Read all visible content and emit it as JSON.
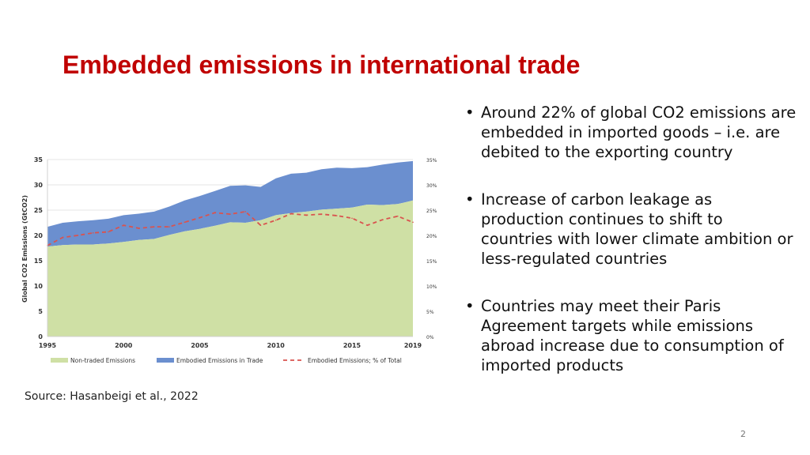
{
  "slide": {
    "title": "Embedded emissions in international trade",
    "bullets": [
      "Around 22% of global CO2 emissions are embedded in imported goods – i.e. are debited to the exporting country",
      "Increase of  carbon leakage as production continues to shift to countries with lower climate ambition or less-regulated countries",
      "Countries may meet their Paris Agreement targets while emissions abroad increase due to consumption of imported products"
    ],
    "bullet_symbol": "•",
    "source": "Source: Hasanbeigi et al., 2022",
    "page_number": "2"
  },
  "chart_data": {
    "type": "area",
    "ylabel": "Global CO2 Emissions (GtCO2)",
    "x": [
      1995,
      1996,
      1997,
      1998,
      1999,
      2000,
      2001,
      2002,
      2003,
      2004,
      2005,
      2006,
      2007,
      2008,
      2009,
      2010,
      2011,
      2012,
      2013,
      2014,
      2015,
      2016,
      2017,
      2018,
      2019
    ],
    "series": [
      {
        "name": "Non-traded Emissions",
        "kind": "stacked-area",
        "axis": "left",
        "color": "#cfe0a5",
        "values": [
          17.8,
          18.1,
          18.2,
          18.2,
          18.4,
          18.7,
          19.1,
          19.3,
          20.1,
          20.8,
          21.3,
          21.9,
          22.6,
          22.5,
          23.0,
          24.0,
          24.4,
          24.7,
          25.1,
          25.3,
          25.5,
          26.1,
          26.0,
          26.2,
          26.9
        ]
      },
      {
        "name": "Embodied Emissions in Trade",
        "kind": "stacked-area",
        "axis": "left",
        "color": "#6b8fcf",
        "values": [
          3.9,
          4.4,
          4.6,
          4.8,
          4.9,
          5.3,
          5.2,
          5.4,
          5.6,
          6.1,
          6.5,
          6.9,
          7.2,
          7.4,
          6.6,
          7.3,
          7.8,
          7.7,
          8.0,
          8.1,
          7.8,
          7.4,
          8.0,
          8.2,
          7.8
        ]
      },
      {
        "name": "Embodied Emissions; % of Total",
        "kind": "dashed-line",
        "axis": "right",
        "color": "#d9534f",
        "values": [
          18.0,
          19.6,
          20.0,
          20.5,
          20.7,
          22.0,
          21.4,
          21.7,
          21.7,
          22.6,
          23.5,
          24.5,
          24.2,
          24.7,
          22.0,
          23.0,
          24.3,
          24.0,
          24.2,
          23.9,
          23.4,
          22.0,
          23.1,
          23.8,
          22.6
        ]
      }
    ],
    "left_axis": {
      "ylim": [
        0,
        35
      ],
      "ticks": [
        "0",
        "5",
        "10",
        "15",
        "20",
        "25",
        "30",
        "35"
      ]
    },
    "right_axis": {
      "ylim": [
        0,
        35
      ],
      "ticks": [
        "0%",
        "5%",
        "10%",
        "15%",
        "20%",
        "25%",
        "30%",
        "35%"
      ]
    },
    "x_ticks": [
      "1995",
      "2000",
      "2005",
      "2010",
      "2015",
      "2019"
    ],
    "grid": true,
    "legend": "bottom"
  }
}
